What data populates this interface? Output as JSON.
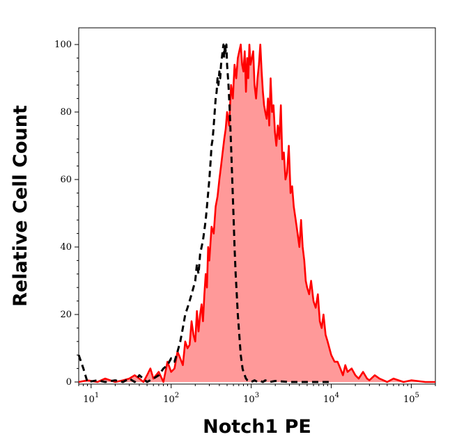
{
  "chart_data": {
    "type": "area",
    "xlabel": "Notch1 PE",
    "ylabel": "Relative Cell Count",
    "x_scale": "log",
    "xlim": [
      7,
      200000
    ],
    "ylim": [
      0,
      100
    ],
    "y_ticks": [
      0,
      20,
      40,
      60,
      80,
      100
    ],
    "x_ticks": [
      {
        "value": 10,
        "base": "10",
        "exp": "1"
      },
      {
        "value": 100,
        "base": "10",
        "exp": "2"
      },
      {
        "value": 1000,
        "base": "10",
        "exp": "3"
      },
      {
        "value": 10000,
        "base": "10",
        "exp": "4"
      },
      {
        "value": 100000,
        "base": "10",
        "exp": "5"
      }
    ],
    "grid": false,
    "legend": "none",
    "series": [
      {
        "style": "filled-solid",
        "color": "#ff0000",
        "fill": "#ff9999",
        "x": [
          7,
          9,
          12,
          15,
          20,
          25,
          30,
          35,
          40,
          45,
          50,
          55,
          60,
          70,
          80,
          90,
          100,
          110,
          120,
          130,
          140,
          150,
          160,
          170,
          180,
          190,
          200,
          210,
          220,
          230,
          240,
          250,
          260,
          270,
          280,
          290,
          300,
          320,
          340,
          360,
          380,
          400,
          420,
          440,
          460,
          480,
          500,
          530,
          560,
          590,
          620,
          650,
          680,
          710,
          740,
          770,
          800,
          830,
          860,
          890,
          920,
          950,
          980,
          1020,
          1060,
          1100,
          1150,
          1200,
          1250,
          1300,
          1350,
          1400,
          1450,
          1500,
          1560,
          1620,
          1680,
          1750,
          1820,
          1900,
          1980,
          2060,
          2150,
          2250,
          2350,
          2450,
          2560,
          2680,
          2800,
          2950,
          3100,
          3250,
          3400,
          3600,
          3800,
          4000,
          4200,
          4400,
          4600,
          4800,
          5000,
          5300,
          5600,
          6000,
          6400,
          6800,
          7200,
          7600,
          8000,
          8500,
          9000,
          9500,
          10000,
          11000,
          12000,
          13000,
          14000,
          15000,
          16000,
          18000,
          20000,
          22000,
          25000,
          28000,
          30000,
          35000,
          40000,
          50000,
          60000,
          80000,
          100000,
          150000,
          200000
        ],
        "y": [
          0,
          0.5,
          0,
          1,
          0,
          0.5,
          1,
          2,
          1,
          0,
          2,
          4,
          1,
          3,
          0,
          6,
          3,
          4,
          9,
          7,
          5,
          12,
          10,
          11,
          18,
          14,
          12,
          21,
          15,
          20,
          23,
          18,
          26,
          32,
          28,
          40,
          36,
          46,
          44,
          52,
          55,
          60,
          64,
          68,
          72,
          75,
          80,
          76,
          88,
          84,
          94,
          90,
          96,
          98,
          100,
          94,
          92,
          98,
          86,
          96,
          90,
          100,
          94,
          96,
          98,
          88,
          84,
          90,
          94,
          100,
          92,
          86,
          82,
          80,
          78,
          84,
          76,
          90,
          80,
          82,
          74,
          70,
          76,
          72,
          82,
          66,
          68,
          60,
          62,
          70,
          56,
          58,
          52,
          48,
          44,
          40,
          48,
          40,
          36,
          30,
          28,
          26,
          30,
          24,
          22,
          26,
          18,
          16,
          20,
          14,
          12,
          10,
          8,
          6,
          6,
          4,
          2,
          5,
          3,
          4,
          2,
          1,
          3,
          1,
          0.5,
          2,
          1,
          0,
          1,
          0,
          0.5,
          0,
          0
        ]
      },
      {
        "style": "dashed",
        "color": "#000000",
        "x": [
          7,
          8,
          9,
          12,
          15,
          20,
          25,
          30,
          35,
          40,
          50,
          60,
          70,
          80,
          90,
          100,
          110,
          120,
          130,
          140,
          150,
          160,
          170,
          180,
          190,
          200,
          210,
          220,
          230,
          240,
          250,
          260,
          270,
          280,
          290,
          300,
          310,
          320,
          330,
          340,
          350,
          360,
          370,
          380,
          390,
          400,
          410,
          420,
          430,
          440,
          450,
          460,
          470,
          480,
          490,
          500,
          520,
          540,
          560,
          580,
          600,
          620,
          640,
          660,
          680,
          700,
          720,
          740,
          760,
          780,
          800,
          830,
          860,
          900,
          950,
          1000,
          1100,
          1200,
          1300,
          1400,
          1500,
          1700,
          2000,
          3000,
          5000,
          10000
        ],
        "y": [
          8,
          4,
          0,
          0.5,
          0,
          0.5,
          0,
          1,
          0,
          2,
          0,
          1,
          2,
          4,
          5,
          7,
          6,
          9,
          12,
          16,
          20,
          22,
          24,
          26,
          28,
          30,
          35,
          32,
          38,
          40,
          42,
          45,
          48,
          52,
          56,
          60,
          65,
          70,
          72,
          76,
          80,
          84,
          86,
          90,
          88,
          92,
          90,
          94,
          96,
          98,
          100,
          96,
          100,
          98,
          100,
          94,
          88,
          80,
          70,
          60,
          50,
          40,
          32,
          26,
          20,
          16,
          12,
          8,
          6,
          4,
          3,
          2,
          1,
          0.5,
          0.3,
          0,
          0.5,
          0,
          0.3,
          0,
          0.5,
          0,
          0.3,
          0,
          0,
          0
        ]
      }
    ]
  }
}
